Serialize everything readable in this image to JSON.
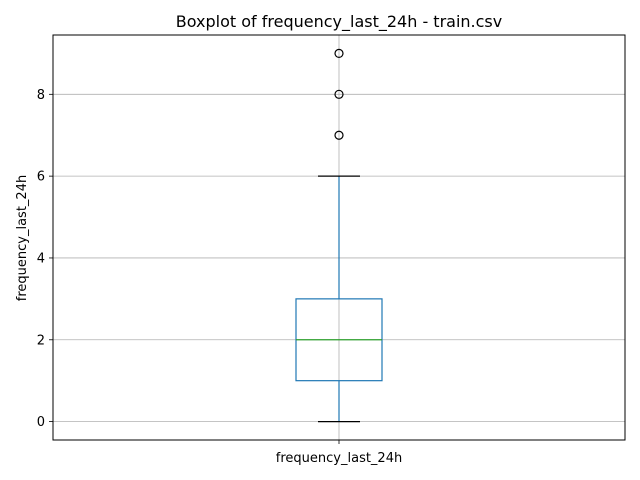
{
  "chart_data": {
    "type": "box",
    "title": "Boxplot of frequency_last_24h - train.csv",
    "xlabel": "",
    "ylabel": "frequency_last_24h",
    "categories": [
      "frequency_last_24h"
    ],
    "boxes": [
      {
        "name": "frequency_last_24h",
        "whisker_low": 0,
        "q1": 1,
        "median": 2,
        "q3": 3,
        "whisker_high": 6,
        "outliers": [
          7,
          8,
          9
        ]
      }
    ],
    "ylim": [
      -0.45,
      9.45
    ],
    "yticks": [
      0,
      2,
      4,
      6,
      8
    ],
    "grid": true,
    "colors": {
      "box": "#1f77b4",
      "median": "#2ca02c",
      "whisker_cap": "#000000",
      "grid": "#b0b0b0"
    }
  }
}
